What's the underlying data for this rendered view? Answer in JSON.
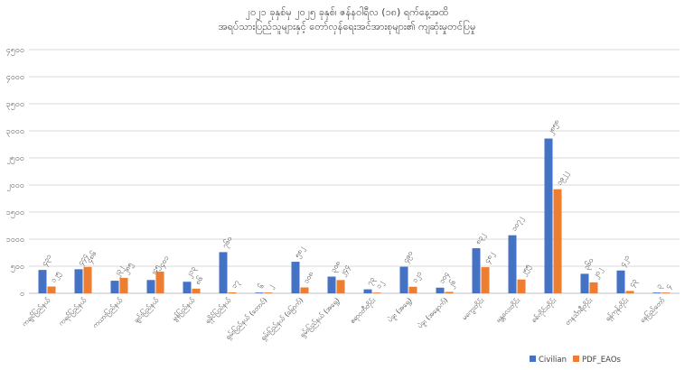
{
  "chart_data": {
    "type": "bar",
    "title": [
      "၂၀၂၁ ခုနှစ်မှ ၂၀၂၅ ခုနှစ်၊ ဇန်နဝါရီလ (၁၈) ရက်နေ့အထိ",
      "အရပ်သားပြည်သူများနှင့် တော်လှန်ရေးအင်အားစုများ၏ ကျဆုံးမှုတင်ပြမှု"
    ],
    "categories": [
      "ကချင်ပြည်နယ်",
      "ကရင်ပြည်နယ်",
      "ကယားပြည်နယ်",
      "ချင်းပြည်နယ်",
      "မွန်ပြည်နယ်",
      "ရခိုင်ပြည်နယ်",
      "ရှမ်းပြည်နယ် (တောင်)",
      "ရှမ်းပြည်နယ် (မြောက်)",
      "ရှမ်းပြည်နယ် (အရှေ့)",
      "ဧရာဝတီတိုင်း",
      "ပဲခူး (အရှေ့)",
      "ပဲခူး (အနောက်)",
      "မကွေးတိုင်း",
      "မန္တလေးတိုင်း",
      "စစ်ကိုင်းတိုင်း",
      "တနင်္သာရီတိုင်း",
      "ရန်ကုန်တိုင်း",
      "နေပြည်တော်"
    ],
    "series": [
      {
        "name": "Civilian",
        "color": "#4472C4",
        "values": [
          431,
          444,
          232,
          245,
          213,
          760,
          6,
          582,
          308,
          73,
          490,
          104,
          832,
          1072,
          2858,
          360,
          421,
          3
        ],
        "labels": [
          "၄၃၁",
          "၄၄၄",
          "၂၃၂",
          "၂၄၅",
          "၂၁၃",
          "၇၆၀",
          "၆",
          "၅၈၂",
          "၃၀၈",
          "၇၃",
          "၄၉၀",
          "၁၀၄",
          "၈၃၂",
          "၁၀၇၂",
          "၂၈၅၈",
          "၃၆၀",
          "၄၂၁",
          "၃"
        ]
      },
      {
        "name": "PDF_EAOs",
        "color": "#ED7D31",
        "values": [
          125,
          486,
          285,
          401,
          86,
          17,
          2,
          108,
          244,
          12,
          121,
          26,
          482,
          255,
          1922,
          202,
          43,
          4
        ],
        "labels": [
          "၁၂၅",
          "၄၈၆",
          "၂၈၅",
          "၄၀၁",
          "၈၆",
          "၁၇",
          "၂",
          "၁၀၈",
          "၂၄၄",
          "၁၂",
          "၁၂၁",
          "၂၆",
          "၄၈၂",
          "၂၅၅",
          "၁၉၂၂",
          "၂၀၂",
          "၄၃",
          "၄"
        ]
      }
    ],
    "ylim": [
      0,
      4500
    ],
    "yticks": [
      0,
      500,
      1000,
      1500,
      2000,
      2500,
      3000,
      3500,
      4000,
      4500
    ],
    "ytick_labels": [
      "၀",
      "၅၀၀",
      "၁၀၀၀",
      "၁၅၀၀",
      "၂၀၀၀",
      "၂၅၀၀",
      "၃၀၀၀",
      "၃၅၀၀",
      "၄၀၀၀",
      "၄၅၀၀"
    ],
    "grid": true,
    "legend": "bottom-right"
  }
}
